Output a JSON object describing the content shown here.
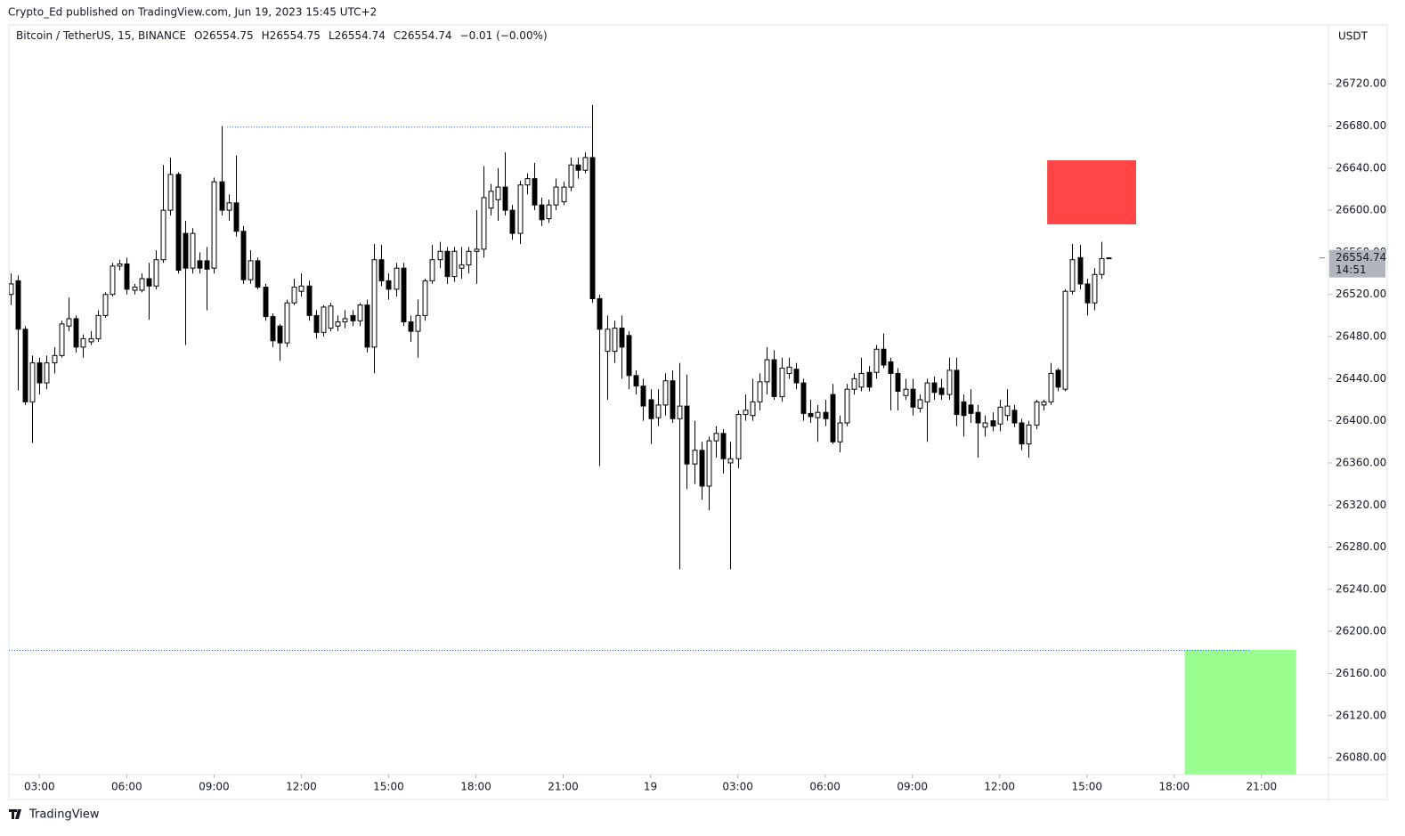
{
  "header": {
    "publisher": "Crypto_Ed published on TradingView.com, Jun 19, 2023 15:45 UTC+2"
  },
  "footer": {
    "brand": "TradingView"
  },
  "chart_data": {
    "type": "candlestick",
    "symbol": "Bitcoin / TetherUS, 15, BINANCE",
    "ohlc": [
      "O26554.75",
      "H26554.75",
      "L26554.74",
      "C26554.74"
    ],
    "change": "−0.01 (−0.00%)",
    "currency": "USDT",
    "up_color": "#ffffff",
    "down_color": "#000000",
    "wick_color": "#000000",
    "candles": [
      [
        26520,
        26540,
        26510,
        26530
      ],
      [
        26533,
        26538,
        26429,
        26487
      ],
      [
        26487,
        26490,
        26415,
        26418
      ],
      [
        26418,
        26462,
        26379,
        26455
      ],
      [
        26455,
        26460,
        26425,
        26436
      ],
      [
        26436,
        26462,
        26430,
        26455
      ],
      [
        26455,
        26470,
        26445,
        26462
      ],
      [
        26462,
        26495,
        26460,
        26492
      ],
      [
        26490,
        26517,
        26485,
        26497
      ],
      [
        26497,
        26500,
        26465,
        26470
      ],
      [
        26470,
        26482,
        26460,
        26478
      ],
      [
        26475,
        26485,
        26472,
        26478
      ],
      [
        26478,
        26505,
        26475,
        26500
      ],
      [
        26500,
        26522,
        26498,
        26520
      ],
      [
        26520,
        26550,
        26518,
        26547
      ],
      [
        26547,
        26553,
        26543,
        26549
      ],
      [
        26549,
        26555,
        26520,
        26525
      ],
      [
        26524,
        26530,
        26520,
        26527
      ],
      [
        26524,
        26540,
        26522,
        26535
      ],
      [
        26535,
        26550,
        26496,
        26528
      ],
      [
        26528,
        26562,
        26525,
        26553
      ],
      [
        26553,
        26643,
        26550,
        26600
      ],
      [
        26600,
        26650,
        26595,
        26634
      ],
      [
        26634,
        26636,
        26540,
        26543
      ],
      [
        26578,
        26590,
        26472,
        26545
      ],
      [
        26545,
        26583,
        26540,
        26578
      ],
      [
        26552,
        26560,
        26540,
        26545
      ],
      [
        26552,
        26565,
        26505,
        26544
      ],
      [
        26545,
        26631,
        26540,
        26627
      ],
      [
        26627,
        26680,
        26595,
        26600
      ],
      [
        26600,
        26615,
        26590,
        26607
      ],
      [
        26607,
        26652,
        26575,
        26580
      ],
      [
        26580,
        26585,
        26530,
        26534
      ],
      [
        26534,
        26562,
        26530,
        26552
      ],
      [
        26552,
        26555,
        26525,
        26527
      ],
      [
        26527,
        26530,
        26495,
        26499
      ],
      [
        26499,
        26502,
        26470,
        26476
      ],
      [
        26490,
        26492,
        26457,
        26474
      ],
      [
        26474,
        26515,
        26470,
        26512
      ],
      [
        26512,
        26535,
        26510,
        26527
      ],
      [
        26523,
        26540,
        26518,
        26528
      ],
      [
        26528,
        26533,
        26495,
        26500
      ],
      [
        26500,
        26505,
        26478,
        26484
      ],
      [
        26484,
        26510,
        26480,
        26508
      ],
      [
        26488,
        26512,
        26485,
        26509
      ],
      [
        26490,
        26500,
        26485,
        26494
      ],
      [
        26494,
        26505,
        26488,
        26497
      ],
      [
        26500,
        26505,
        26490,
        26495
      ],
      [
        26495,
        26512,
        26490,
        26510
      ],
      [
        26510,
        26515,
        26465,
        26470
      ],
      [
        26470,
        26568,
        26445,
        26553
      ],
      [
        26553,
        26567,
        26528,
        26533
      ],
      [
        26533,
        26540,
        26515,
        26525
      ],
      [
        26525,
        26550,
        26518,
        26545
      ],
      [
        26545,
        26550,
        26490,
        26494
      ],
      [
        26494,
        26500,
        26475,
        26485
      ],
      [
        26485,
        26515,
        26460,
        26500
      ],
      [
        26500,
        26535,
        26495,
        26533
      ],
      [
        26533,
        26567,
        26530,
        26553
      ],
      [
        26553,
        26570,
        26545,
        26561
      ],
      [
        26561,
        26565,
        26530,
        26537
      ],
      [
        26537,
        26565,
        26532,
        26561
      ],
      [
        26545,
        26565,
        26535,
        26548
      ],
      [
        26548,
        26565,
        26540,
        26561
      ],
      [
        26561,
        26600,
        26530,
        26563
      ],
      [
        26563,
        26642,
        26555,
        26612
      ],
      [
        26602,
        26625,
        26595,
        26618
      ],
      [
        26610,
        26640,
        26590,
        26622
      ],
      [
        26622,
        26655,
        26595,
        26600
      ],
      [
        26600,
        26605,
        26572,
        26578
      ],
      [
        26578,
        26628,
        26568,
        26624
      ],
      [
        26624,
        26635,
        26615,
        26630
      ],
      [
        26630,
        26645,
        26600,
        26605
      ],
      [
        26605,
        26612,
        26585,
        26591
      ],
      [
        26592,
        26610,
        26588,
        26605
      ],
      [
        26605,
        26630,
        26600,
        26622
      ],
      [
        26608,
        26627,
        26605,
        26622
      ],
      [
        26622,
        26650,
        26618,
        26643
      ],
      [
        26643,
        26650,
        26630,
        26638
      ],
      [
        26638,
        26655,
        26635,
        26650
      ],
      [
        26650,
        26700,
        26512,
        26516
      ],
      [
        26516,
        26520,
        26357,
        26487
      ],
      [
        26466,
        26500,
        26420,
        26487
      ],
      [
        26466,
        26495,
        26455,
        26488
      ],
      [
        26488,
        26500,
        26440,
        26470
      ],
      [
        26481,
        26485,
        26430,
        26443
      ],
      [
        26443,
        26448,
        26425,
        26433
      ],
      [
        26433,
        26440,
        26400,
        26414
      ],
      [
        26420,
        26430,
        26378,
        26402
      ],
      [
        26403,
        26430,
        26395,
        26415
      ],
      [
        26415,
        26445,
        26405,
        26438
      ],
      [
        26438,
        26448,
        26398,
        26402
      ],
      [
        26402,
        26455,
        26259,
        26414
      ],
      [
        26414,
        26444,
        26335,
        26359
      ],
      [
        26359,
        26400,
        26340,
        26372
      ],
      [
        26372,
        26380,
        26325,
        26338
      ],
      [
        26338,
        26385,
        26315,
        26381
      ],
      [
        26381,
        26395,
        26365,
        26388
      ],
      [
        26388,
        26392,
        26350,
        26364
      ],
      [
        26360,
        26380,
        26259,
        26364
      ],
      [
        26364,
        26410,
        26355,
        26406
      ],
      [
        26406,
        26425,
        26400,
        26410
      ],
      [
        26405,
        26440,
        26400,
        26418
      ],
      [
        26418,
        26445,
        26410,
        26437
      ],
      [
        26437,
        26470,
        26425,
        26458
      ],
      [
        26458,
        26467,
        26420,
        26423
      ],
      [
        26423,
        26460,
        26418,
        26450
      ],
      [
        26445,
        26460,
        26440,
        26451
      ],
      [
        26449,
        26455,
        26430,
        26436
      ],
      [
        26436,
        26440,
        26400,
        26407
      ],
      [
        26407,
        26420,
        26398,
        26404
      ],
      [
        26403,
        26415,
        26380,
        26408
      ],
      [
        26408,
        26420,
        26395,
        26402
      ],
      [
        26425,
        26435,
        26378,
        26380
      ],
      [
        26380,
        26405,
        26370,
        26398
      ],
      [
        26398,
        26435,
        26395,
        26430
      ],
      [
        26430,
        26445,
        26425,
        26440
      ],
      [
        26432,
        26460,
        26428,
        26445
      ],
      [
        26446,
        26452,
        26428,
        26432
      ],
      [
        26446,
        26472,
        26440,
        26468
      ],
      [
        26468,
        26483,
        26450,
        26453
      ],
      [
        26456,
        26460,
        26410,
        26445
      ],
      [
        26445,
        26450,
        26410,
        26428
      ],
      [
        26424,
        26440,
        26420,
        26430
      ],
      [
        26430,
        26440,
        26405,
        26413
      ],
      [
        26412,
        26425,
        26408,
        26420
      ],
      [
        26418,
        26440,
        26380,
        26436
      ],
      [
        26436,
        26442,
        26420,
        26427
      ],
      [
        26431,
        26440,
        26420,
        26425
      ],
      [
        26425,
        26460,
        26420,
        26448
      ],
      [
        26448,
        26460,
        26395,
        26406
      ],
      [
        26418,
        26425,
        26385,
        26405
      ],
      [
        26415,
        26430,
        26398,
        26407
      ],
      [
        26408,
        26415,
        26365,
        26398
      ],
      [
        26394,
        26405,
        26385,
        26398
      ],
      [
        26400,
        26408,
        26390,
        26395
      ],
      [
        26397,
        26420,
        26390,
        26413
      ],
      [
        26405,
        26430,
        26400,
        26414
      ],
      [
        26410,
        26415,
        26394,
        26398
      ],
      [
        26398,
        26402,
        26372,
        26378
      ],
      [
        26378,
        26400,
        26365,
        26396
      ],
      [
        26396,
        26420,
        26392,
        26418
      ],
      [
        26415,
        26420,
        26410,
        26418
      ],
      [
        26418,
        26455,
        26415,
        26445
      ],
      [
        26448,
        26450,
        26428,
        26432
      ],
      [
        26430,
        26525,
        26428,
        26523
      ],
      [
        26523,
        26568,
        26520,
        26553
      ],
      [
        26555,
        26567,
        26525,
        26530
      ],
      [
        26530,
        26535,
        26500,
        26512
      ],
      [
        26512,
        26545,
        26505,
        26539
      ],
      [
        26539,
        26570,
        26535,
        26554
      ],
      [
        26554.75,
        26554.75,
        26554.74,
        26554.74
      ]
    ],
    "xlim": [
      -0.2,
      181.2
    ],
    "xticks": [
      {
        "value": 4,
        "label": "03:00"
      },
      {
        "value": 16,
        "label": "06:00"
      },
      {
        "value": 28,
        "label": "09:00"
      },
      {
        "value": 40,
        "label": "12:00"
      },
      {
        "value": 52,
        "label": "15:00"
      },
      {
        "value": 64,
        "label": "18:00"
      },
      {
        "value": 76,
        "label": "21:00"
      },
      {
        "value": 88,
        "label": "19"
      },
      {
        "value": 100,
        "label": "03:00"
      },
      {
        "value": 112,
        "label": "06:00"
      },
      {
        "value": 124,
        "label": "09:00"
      },
      {
        "value": 136,
        "label": "12:00"
      },
      {
        "value": 148,
        "label": "15:00"
      },
      {
        "value": 160,
        "label": "18:00"
      },
      {
        "value": 172,
        "label": "21:00"
      }
    ],
    "ylim": [
      26064,
      26776
    ],
    "yticks": [
      {
        "value": 26080,
        "label": "26080.00"
      },
      {
        "value": 26120,
        "label": "26120.00"
      },
      {
        "value": 26160,
        "label": "26160.00"
      },
      {
        "value": 26200,
        "label": "26200.00"
      },
      {
        "value": 26240,
        "label": "26240.00"
      },
      {
        "value": 26280,
        "label": "26280.00"
      },
      {
        "value": 26320,
        "label": "26320.00"
      },
      {
        "value": 26360,
        "label": "26360.00"
      },
      {
        "value": 26400,
        "label": "26400.00"
      },
      {
        "value": 26440,
        "label": "26440.00"
      },
      {
        "value": 26480,
        "label": "26480.00"
      },
      {
        "value": 26520,
        "label": "26520.00"
      },
      {
        "value": 26560,
        "label": "26560.00"
      },
      {
        "value": 26600,
        "label": "26600.00"
      },
      {
        "value": 26640,
        "label": "26640.00"
      },
      {
        "value": 26680,
        "label": "26680.00"
      },
      {
        "value": 26720,
        "label": "26720.00"
      }
    ],
    "last_price": {
      "value": 26554.74,
      "label": "26554.74"
    },
    "countdown": "14:51",
    "rectangles": [
      {
        "color": "#ff4545",
        "x": [
          142.6,
          154.7
        ],
        "y": [
          26587,
          26647
        ]
      },
      {
        "color": "#9aff8f",
        "x": [
          161.5,
          176.7
        ],
        "y": [
          26064,
          26182
        ]
      }
    ],
    "levels": [
      {
        "color": "#2962ff",
        "x": [
          29.8,
          79.8
        ],
        "y": 26679
      },
      {
        "color": "#2962ff",
        "x": [
          -0.2,
          170.5
        ],
        "y": 26182
      }
    ]
  }
}
